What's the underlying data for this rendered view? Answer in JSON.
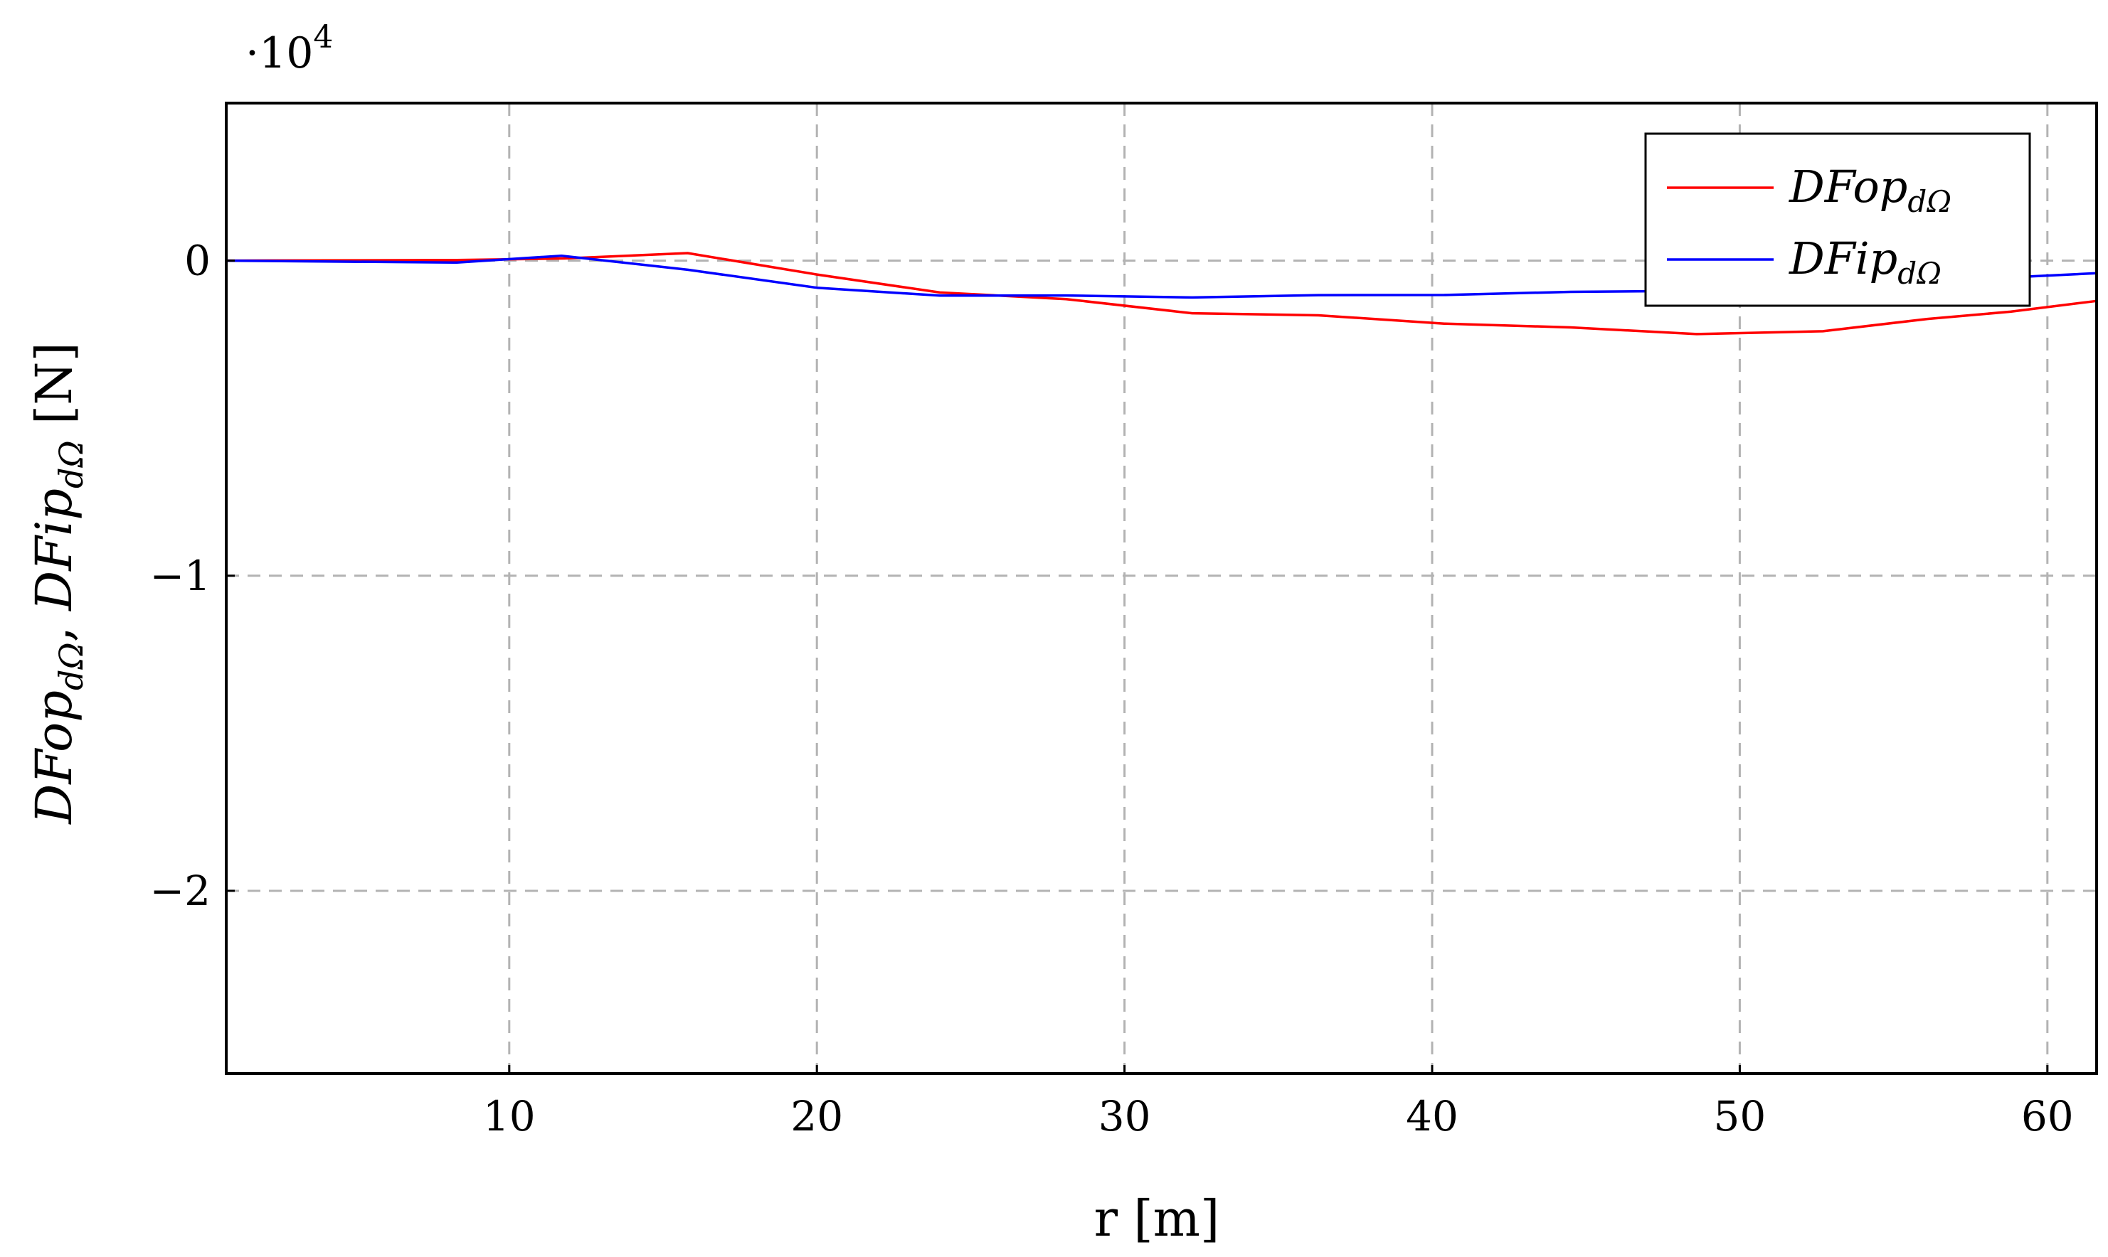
{
  "chart_data": {
    "type": "line",
    "title": "",
    "xlabel": "r [m]",
    "ylabel": {
      "prefix1": "DFop",
      "sub1": "dΩ",
      "sep": ", ",
      "prefix2": "DFip",
      "sub2": "dΩ",
      "unit": " [N]"
    },
    "y_multiplier": {
      "base": "·10",
      "exponent": "4"
    },
    "xlim": [
      0.8,
      61.6
    ],
    "ylim": [
      -2.58,
      0.5
    ],
    "y_scale": 10000,
    "x_ticks": [
      10,
      20,
      30,
      40,
      50,
      60
    ],
    "x_tick_labels": [
      "10",
      "20",
      "30",
      "40",
      "50",
      "60"
    ],
    "y_ticks": [
      0,
      -1,
      -2
    ],
    "y_tick_labels": [
      "0",
      "−1",
      "−2"
    ],
    "grid": true,
    "grid_style": "dashed",
    "legend_position": "top-right",
    "series": [
      {
        "name_main": "DFop",
        "name_sub": "dΩ",
        "color": "#ff0000",
        "x": [
          0.8,
          8.3,
          10.1,
          11.8,
          15.8,
          20.0,
          24.0,
          28.1,
          32.2,
          36.3,
          40.4,
          44.5,
          48.6,
          52.7,
          56.1,
          58.8,
          61.6
        ],
        "y": [
          0,
          20,
          45,
          70,
          240,
          -440,
          -1010,
          -1220,
          -1670,
          -1735,
          -2000,
          -2120,
          -2330,
          -2240,
          -1850,
          -1620,
          -1280
        ]
      },
      {
        "name_main": "DFip",
        "name_sub": "dΩ",
        "color": "#0000ff",
        "x": [
          0.8,
          8.3,
          11.7,
          15.8,
          20.0,
          24.0,
          28.1,
          32.2,
          36.3,
          40.4,
          44.5,
          48.6,
          52.7,
          56.1,
          58.8,
          61.6
        ],
        "y": [
          0,
          -60,
          155,
          -290,
          -860,
          -1110,
          -1105,
          -1170,
          -1095,
          -1090,
          -990,
          -960,
          -830,
          -640,
          -530,
          -400
        ]
      }
    ]
  }
}
